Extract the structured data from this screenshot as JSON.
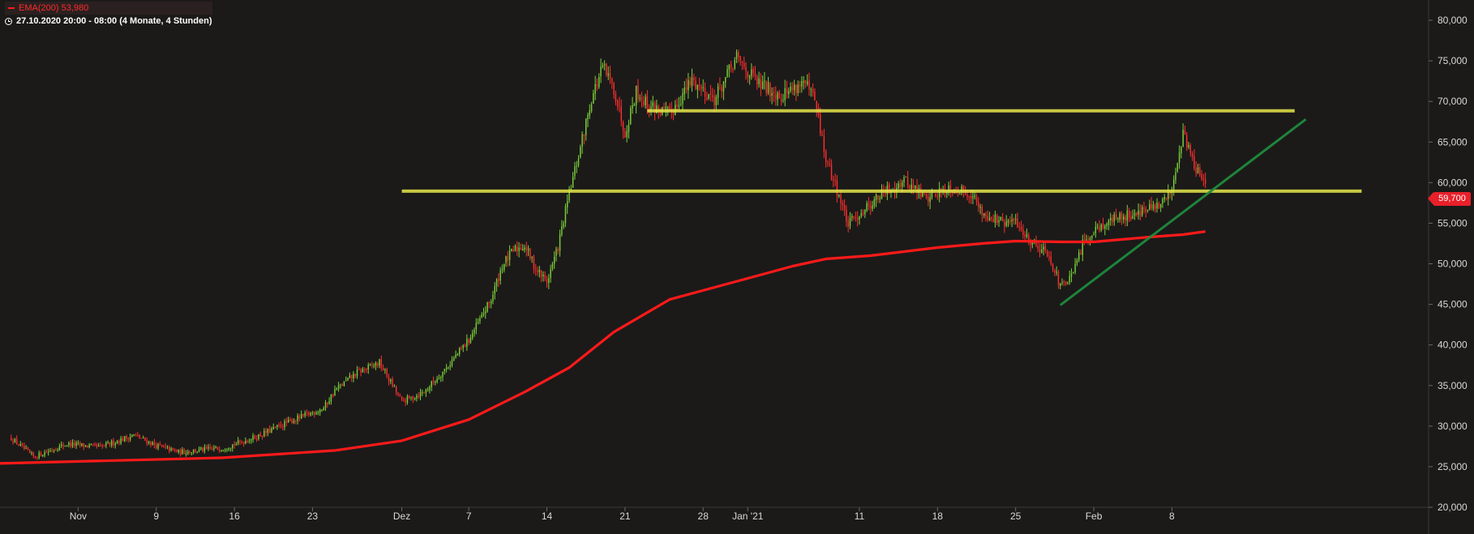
{
  "legend": {
    "ema": "EMA(200)  53,980",
    "period": "27.10.2020 20:00 - 08:00   (4 Monate, 4 Stunden)"
  },
  "last_price_label": "59,700",
  "colors": {
    "background": "#1b1a19",
    "up": "#7bd03a",
    "down": "#ff2d2d",
    "ema": "#ff1a1a",
    "support_lines": "#e6e64a",
    "trendline": "#1f8a3c",
    "text": "#d9d9d9"
  },
  "chart_data": {
    "type": "candlestick",
    "y_tick_labels": [
      "80,000",
      "75,000",
      "70,000",
      "65,000",
      "60,000",
      "55,000",
      "50,000",
      "45,000",
      "40,000",
      "35,000",
      "30,000",
      "25,000",
      "20,000"
    ],
    "y_ticks": [
      80000,
      75000,
      70000,
      65000,
      60000,
      55000,
      50000,
      45000,
      40000,
      35000,
      30000,
      25000,
      20000
    ],
    "ylim": [
      20000,
      82500
    ],
    "x_tick_labels": [
      {
        "label": "Nov",
        "date": "2020-11-02"
      },
      {
        "label": "9",
        "date": "2020-11-09"
      },
      {
        "label": "16",
        "date": "2020-11-16"
      },
      {
        "label": "23",
        "date": "2020-11-23"
      },
      {
        "label": "Dez",
        "date": "2020-12-01"
      },
      {
        "label": "7",
        "date": "2020-12-07"
      },
      {
        "label": "14",
        "date": "2020-12-14"
      },
      {
        "label": "21",
        "date": "2020-12-21"
      },
      {
        "label": "28",
        "date": "2020-12-28"
      },
      {
        "label": "Jan '21",
        "date": "2021-01-01"
      },
      {
        "label": "11",
        "date": "2021-01-11"
      },
      {
        "label": "18",
        "date": "2021-01-18"
      },
      {
        "label": "25",
        "date": "2021-01-25"
      },
      {
        "label": "Feb",
        "date": "2021-02-01"
      },
      {
        "label": "8",
        "date": "2021-02-08"
      }
    ],
    "xlim": [
      "2020-10-26",
      "2021-03-03"
    ],
    "price_path": [
      [
        "2020-10-27",
        28500
      ],
      [
        "2020-10-29",
        26200
      ],
      [
        "2020-11-01",
        27800
      ],
      [
        "2020-11-04",
        27400
      ],
      [
        "2020-11-07",
        28900
      ],
      [
        "2020-11-09",
        27600
      ],
      [
        "2020-11-11",
        26800
      ],
      [
        "2020-11-15",
        27300
      ],
      [
        "2020-11-18",
        28700
      ],
      [
        "2020-11-21",
        30600
      ],
      [
        "2020-11-24",
        32200
      ],
      [
        "2020-11-25",
        34400
      ],
      [
        "2020-11-27",
        36600
      ],
      [
        "2020-11-29",
        37800
      ],
      [
        "2020-12-01",
        33000
      ],
      [
        "2020-12-03",
        34200
      ],
      [
        "2020-12-05",
        37200
      ],
      [
        "2020-12-07",
        40600
      ],
      [
        "2020-12-09",
        45600
      ],
      [
        "2020-12-10",
        49800
      ],
      [
        "2020-12-11",
        51600
      ],
      [
        "2020-12-12",
        52300
      ],
      [
        "2020-12-13",
        49400
      ],
      [
        "2020-12-14",
        47800
      ],
      [
        "2020-12-15",
        52100
      ],
      [
        "2020-12-16",
        58600
      ],
      [
        "2020-12-17",
        64300
      ],
      [
        "2020-12-18",
        70400
      ],
      [
        "2020-12-19",
        74200
      ],
      [
        "2020-12-20",
        71600
      ],
      [
        "2020-12-21",
        66200
      ],
      [
        "2020-12-22",
        71300
      ],
      [
        "2020-12-23",
        69600
      ],
      [
        "2020-12-25",
        68400
      ],
      [
        "2020-12-27",
        72600
      ],
      [
        "2020-12-29",
        70300
      ],
      [
        "2020-12-31",
        75300
      ],
      [
        "2021-01-02",
        72100
      ],
      [
        "2021-01-04",
        70800
      ],
      [
        "2021-01-06",
        72400
      ],
      [
        "2021-01-07",
        70100
      ],
      [
        "2021-01-08",
        62800
      ],
      [
        "2021-01-09",
        59100
      ],
      [
        "2021-01-10",
        54800
      ],
      [
        "2021-01-11",
        56200
      ],
      [
        "2021-01-13",
        58600
      ],
      [
        "2021-01-15",
        60300
      ],
      [
        "2021-01-17",
        58100
      ],
      [
        "2021-01-19",
        59400
      ],
      [
        "2021-01-21",
        58700
      ],
      [
        "2021-01-22",
        56300
      ],
      [
        "2021-01-24",
        54900
      ],
      [
        "2021-01-25",
        55300
      ],
      [
        "2021-01-26",
        53200
      ],
      [
        "2021-01-28",
        51200
      ],
      [
        "2021-01-29",
        47100
      ],
      [
        "2021-01-30",
        48300
      ],
      [
        "2021-01-31",
        52300
      ],
      [
        "2021-02-01",
        54300
      ],
      [
        "2021-02-03",
        55600
      ],
      [
        "2021-02-05",
        56400
      ],
      [
        "2021-02-07",
        57100
      ],
      [
        "2021-02-08",
        59300
      ],
      [
        "2021-02-09",
        66200
      ],
      [
        "2021-02-10",
        62200
      ],
      [
        "2021-02-11",
        59700
      ]
    ],
    "series": [
      {
        "name": "EMA(200)",
        "type": "line",
        "points": [
          [
            "2020-10-26",
            25400
          ],
          [
            "2020-11-15",
            26100
          ],
          [
            "2020-11-25",
            27000
          ],
          [
            "2020-12-01",
            28200
          ],
          [
            "2020-12-07",
            30800
          ],
          [
            "2020-12-12",
            34200
          ],
          [
            "2020-12-16",
            37200
          ],
          [
            "2020-12-20",
            41600
          ],
          [
            "2020-12-25",
            45600
          ],
          [
            "2021-01-01",
            48200
          ],
          [
            "2021-01-05",
            49700
          ],
          [
            "2021-01-08",
            50600
          ],
          [
            "2021-01-12",
            51000
          ],
          [
            "2021-01-18",
            52000
          ],
          [
            "2021-01-22",
            52500
          ],
          [
            "2021-01-25",
            52800
          ],
          [
            "2021-01-29",
            52700
          ],
          [
            "2021-02-01",
            52700
          ],
          [
            "2021-02-06",
            53300
          ],
          [
            "2021-02-09",
            53600
          ],
          [
            "2021-02-11",
            53980
          ]
        ]
      }
    ],
    "annotations": [
      {
        "type": "horizontal_line",
        "name": "resistance",
        "y": 68850,
        "from": "2020-12-23",
        "to": "2021-02-19"
      },
      {
        "type": "horizontal_line",
        "name": "support",
        "y": 58950,
        "from": "2020-12-01",
        "to": "2021-02-25"
      },
      {
        "type": "trendline",
        "name": "uptrend",
        "from": [
          "2021-01-29",
          44900
        ],
        "to": [
          "2021-02-20",
          67800
        ]
      }
    ],
    "last_price": 59700,
    "grid": false
  }
}
